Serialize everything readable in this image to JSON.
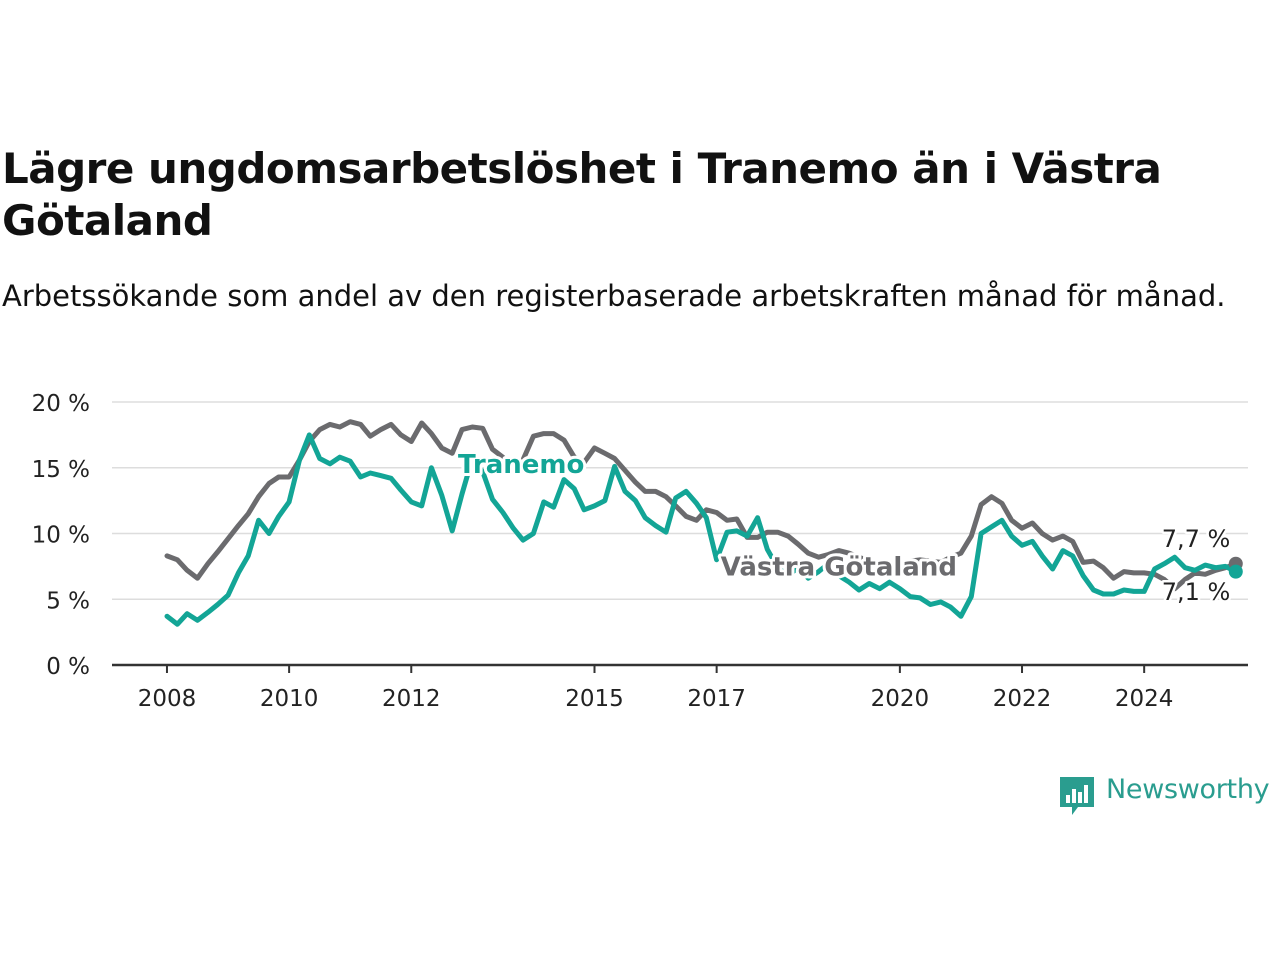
{
  "title": "Lägre ungdomsarbetslöshet i Tranemo än i Västra Götaland",
  "subtitle": "Arbetssökande som andel av den registerbaserade arbetskraften månad för månad.",
  "logo_text": "Newsworthy",
  "chart_data": {
    "type": "line",
    "title": "Lägre ungdomsarbetslöshet i Tranemo än i Västra Götaland",
    "subtitle": "Arbetssökande som andel av den registerbaserade arbetskraften månad för månad.",
    "xlabel": "",
    "ylabel": "",
    "ylim": [
      0,
      20
    ],
    "yticks": [
      0,
      5,
      10,
      15,
      20
    ],
    "ytick_labels": [
      "0 %",
      "5 %",
      "10 %",
      "15 %",
      "20 %"
    ],
    "xticks": [
      2008,
      2010,
      2012,
      2015,
      2017,
      2020,
      2022,
      2024
    ],
    "xtick_labels": [
      "2008",
      "2010",
      "2012",
      "2015",
      "2017",
      "2020",
      "2022",
      "2024"
    ],
    "xlim": [
      2007.1,
      2025.7
    ],
    "grid": true,
    "legend": "inline labels",
    "end_labels": [
      "7,7 %",
      "7,1 %"
    ],
    "colors": {
      "Tranemo": "#13a596",
      "Västra Götaland": "#6b6b6e",
      "grid": "#dddddd",
      "axis": "#333333"
    },
    "series": [
      {
        "name": "Västra Götaland",
        "label": "Västra Götaland",
        "points": [
          [
            2008.0,
            8.3
          ],
          [
            2008.17,
            8.0
          ],
          [
            2008.33,
            7.2
          ],
          [
            2008.5,
            6.6
          ],
          [
            2008.67,
            7.7
          ],
          [
            2008.83,
            8.6
          ],
          [
            2009.0,
            9.6
          ],
          [
            2009.17,
            10.6
          ],
          [
            2009.33,
            11.5
          ],
          [
            2009.5,
            12.8
          ],
          [
            2009.67,
            13.8
          ],
          [
            2009.83,
            14.3
          ],
          [
            2010.0,
            14.3
          ],
          [
            2010.17,
            15.6
          ],
          [
            2010.33,
            17.0
          ],
          [
            2010.5,
            17.9
          ],
          [
            2010.67,
            18.3
          ],
          [
            2010.83,
            18.1
          ],
          [
            2011.0,
            18.5
          ],
          [
            2011.17,
            18.3
          ],
          [
            2011.33,
            17.4
          ],
          [
            2011.5,
            17.9
          ],
          [
            2011.67,
            18.3
          ],
          [
            2011.83,
            17.5
          ],
          [
            2012.0,
            17.0
          ],
          [
            2012.17,
            18.4
          ],
          [
            2012.33,
            17.6
          ],
          [
            2012.5,
            16.5
          ],
          [
            2012.67,
            16.1
          ],
          [
            2012.83,
            17.9
          ],
          [
            2013.0,
            18.1
          ],
          [
            2013.17,
            18.0
          ],
          [
            2013.33,
            16.4
          ],
          [
            2013.5,
            15.8
          ],
          [
            2013.67,
            15.0
          ],
          [
            2013.83,
            15.6
          ],
          [
            2014.0,
            17.4
          ],
          [
            2014.17,
            17.6
          ],
          [
            2014.33,
            17.6
          ],
          [
            2014.5,
            17.1
          ],
          [
            2014.67,
            15.8
          ],
          [
            2014.83,
            15.4
          ],
          [
            2015.0,
            16.5
          ],
          [
            2015.17,
            16.1
          ],
          [
            2015.33,
            15.7
          ],
          [
            2015.5,
            14.8
          ],
          [
            2015.67,
            13.9
          ],
          [
            2015.83,
            13.2
          ],
          [
            2016.0,
            13.2
          ],
          [
            2016.17,
            12.8
          ],
          [
            2016.33,
            12.1
          ],
          [
            2016.5,
            11.3
          ],
          [
            2016.67,
            11.0
          ],
          [
            2016.83,
            11.8
          ],
          [
            2017.0,
            11.6
          ],
          [
            2017.17,
            11.0
          ],
          [
            2017.33,
            11.1
          ],
          [
            2017.5,
            9.7
          ],
          [
            2017.67,
            9.7
          ],
          [
            2017.83,
            10.1
          ],
          [
            2018.0,
            10.1
          ],
          [
            2018.17,
            9.8
          ],
          [
            2018.33,
            9.2
          ],
          [
            2018.5,
            8.5
          ],
          [
            2018.67,
            8.2
          ],
          [
            2018.83,
            8.4
          ],
          [
            2019.0,
            8.7
          ],
          [
            2019.17,
            8.5
          ],
          [
            2019.33,
            8.2
          ],
          [
            2019.5,
            7.9
          ],
          [
            2019.67,
            7.8
          ],
          [
            2019.83,
            7.7
          ],
          [
            2020.0,
            7.6
          ],
          [
            2020.17,
            7.9
          ],
          [
            2020.33,
            8.0
          ],
          [
            2020.5,
            7.9
          ],
          [
            2020.67,
            7.8
          ],
          [
            2020.83,
            8.2
          ],
          [
            2021.0,
            8.5
          ],
          [
            2021.17,
            9.8
          ],
          [
            2021.33,
            12.2
          ],
          [
            2021.5,
            12.8
          ],
          [
            2021.67,
            12.3
          ],
          [
            2021.83,
            11.0
          ],
          [
            2022.0,
            10.4
          ],
          [
            2022.17,
            10.8
          ],
          [
            2022.33,
            10.0
          ],
          [
            2022.5,
            9.5
          ],
          [
            2022.67,
            9.8
          ],
          [
            2022.83,
            9.4
          ],
          [
            2023.0,
            7.8
          ],
          [
            2023.17,
            7.9
          ],
          [
            2023.33,
            7.4
          ],
          [
            2023.5,
            6.6
          ],
          [
            2023.67,
            7.1
          ],
          [
            2023.83,
            7.0
          ],
          [
            2024.0,
            7.0
          ],
          [
            2024.17,
            6.9
          ],
          [
            2024.33,
            6.5
          ],
          [
            2024.5,
            5.8
          ],
          [
            2024.67,
            6.5
          ],
          [
            2024.83,
            7.0
          ],
          [
            2025.0,
            6.9
          ],
          [
            2025.17,
            7.2
          ],
          [
            2025.33,
            7.4
          ],
          [
            2025.5,
            7.7
          ]
        ]
      },
      {
        "name": "Tranemo",
        "label": "Tranemo",
        "points": [
          [
            2008.0,
            3.7
          ],
          [
            2008.17,
            3.1
          ],
          [
            2008.33,
            3.9
          ],
          [
            2008.5,
            3.4
          ],
          [
            2008.67,
            4.0
          ],
          [
            2008.83,
            4.6
          ],
          [
            2009.0,
            5.3
          ],
          [
            2009.17,
            7.0
          ],
          [
            2009.33,
            8.3
          ],
          [
            2009.5,
            11.0
          ],
          [
            2009.67,
            10.0
          ],
          [
            2009.83,
            11.3
          ],
          [
            2010.0,
            12.4
          ],
          [
            2010.17,
            15.6
          ],
          [
            2010.33,
            17.5
          ],
          [
            2010.5,
            15.7
          ],
          [
            2010.67,
            15.3
          ],
          [
            2010.83,
            15.8
          ],
          [
            2011.0,
            15.5
          ],
          [
            2011.17,
            14.3
          ],
          [
            2011.33,
            14.6
          ],
          [
            2011.5,
            14.4
          ],
          [
            2011.67,
            14.2
          ],
          [
            2011.83,
            13.3
          ],
          [
            2012.0,
            12.4
          ],
          [
            2012.17,
            12.1
          ],
          [
            2012.33,
            15.0
          ],
          [
            2012.5,
            12.9
          ],
          [
            2012.67,
            10.2
          ],
          [
            2012.83,
            13.0
          ],
          [
            2013.0,
            15.7
          ],
          [
            2013.17,
            14.7
          ],
          [
            2013.33,
            12.6
          ],
          [
            2013.5,
            11.6
          ],
          [
            2013.67,
            10.4
          ],
          [
            2013.83,
            9.5
          ],
          [
            2014.0,
            10.0
          ],
          [
            2014.17,
            12.4
          ],
          [
            2014.33,
            12.0
          ],
          [
            2014.5,
            14.1
          ],
          [
            2014.67,
            13.4
          ],
          [
            2014.83,
            11.8
          ],
          [
            2015.0,
            12.1
          ],
          [
            2015.17,
            12.5
          ],
          [
            2015.33,
            15.1
          ],
          [
            2015.5,
            13.2
          ],
          [
            2015.67,
            12.5
          ],
          [
            2015.83,
            11.2
          ],
          [
            2016.0,
            10.6
          ],
          [
            2016.17,
            10.1
          ],
          [
            2016.33,
            12.7
          ],
          [
            2016.5,
            13.2
          ],
          [
            2016.67,
            12.3
          ],
          [
            2016.83,
            11.2
          ],
          [
            2017.0,
            8.0
          ],
          [
            2017.17,
            10.1
          ],
          [
            2017.33,
            10.2
          ],
          [
            2017.5,
            9.8
          ],
          [
            2017.67,
            11.2
          ],
          [
            2017.83,
            8.8
          ],
          [
            2018.0,
            7.4
          ],
          [
            2018.17,
            6.8
          ],
          [
            2018.33,
            7.4
          ],
          [
            2018.5,
            6.6
          ],
          [
            2018.67,
            7.1
          ],
          [
            2018.83,
            7.7
          ],
          [
            2019.0,
            6.8
          ],
          [
            2019.17,
            6.3
          ],
          [
            2019.33,
            5.7
          ],
          [
            2019.5,
            6.2
          ],
          [
            2019.67,
            5.8
          ],
          [
            2019.83,
            6.3
          ],
          [
            2020.0,
            5.8
          ],
          [
            2020.17,
            5.2
          ],
          [
            2020.33,
            5.1
          ],
          [
            2020.5,
            4.6
          ],
          [
            2020.67,
            4.8
          ],
          [
            2020.83,
            4.4
          ],
          [
            2021.0,
            3.7
          ],
          [
            2021.17,
            5.2
          ],
          [
            2021.33,
            10.0
          ],
          [
            2021.5,
            10.5
          ],
          [
            2021.67,
            11.0
          ],
          [
            2021.83,
            9.8
          ],
          [
            2022.0,
            9.1
          ],
          [
            2022.17,
            9.4
          ],
          [
            2022.33,
            8.3
          ],
          [
            2022.5,
            7.3
          ],
          [
            2022.67,
            8.7
          ],
          [
            2022.83,
            8.3
          ],
          [
            2023.0,
            6.8
          ],
          [
            2023.17,
            5.7
          ],
          [
            2023.33,
            5.4
          ],
          [
            2023.5,
            5.4
          ],
          [
            2023.67,
            5.7
          ],
          [
            2023.83,
            5.6
          ],
          [
            2024.0,
            5.6
          ],
          [
            2024.17,
            7.3
          ],
          [
            2024.33,
            7.7
          ],
          [
            2024.5,
            8.2
          ],
          [
            2024.67,
            7.4
          ],
          [
            2024.83,
            7.2
          ],
          [
            2025.0,
            7.6
          ],
          [
            2025.17,
            7.4
          ],
          [
            2025.33,
            7.5
          ],
          [
            2025.5,
            7.1
          ]
        ]
      }
    ]
  }
}
